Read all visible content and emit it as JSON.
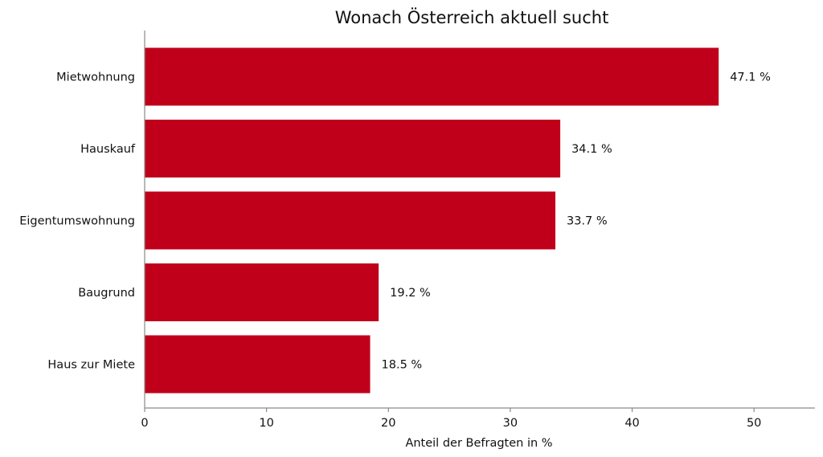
{
  "chart_data": {
    "type": "bar",
    "orientation": "horizontal",
    "title": "Wonach Österreich aktuell sucht",
    "xlabel": "Anteil der Befragten in %",
    "ylabel": "",
    "categories": [
      "Mietwohnung",
      "Hauskauf",
      "Eigentumswohnung",
      "Baugrund",
      "Haus zur Miete"
    ],
    "values": [
      47.1,
      34.1,
      33.7,
      19.2,
      18.5
    ],
    "value_labels": [
      "47.1 %",
      "34.1 %",
      "33.7 %",
      "19.2 %",
      "18.5 %"
    ],
    "xlim": [
      0,
      55
    ],
    "xticks": [
      0,
      10,
      20,
      30,
      40,
      50
    ],
    "grid": false,
    "bar_color": "#c0001a"
  }
}
